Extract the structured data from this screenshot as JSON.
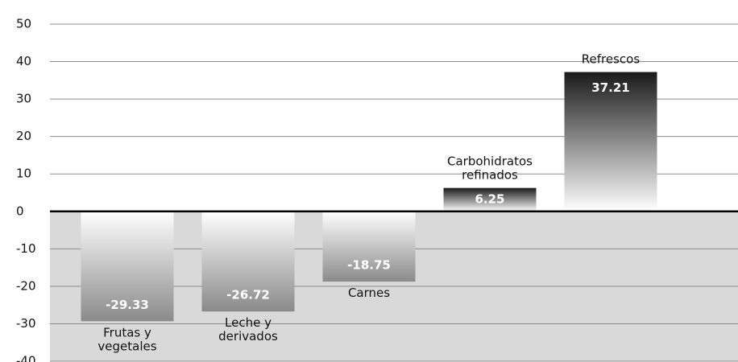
{
  "chart_data": {
    "type": "bar",
    "categories": [
      "Frutas y vegetales",
      "Leche y derivados",
      "Carnes",
      "Carbohidratos refinados",
      "Refrescos"
    ],
    "values": [
      -29.33,
      -26.72,
      -18.75,
      6.25,
      37.21
    ],
    "ylim": [
      -40,
      50
    ],
    "yticks": [
      -40,
      -30,
      -20,
      -10,
      0,
      10,
      20,
      30,
      40,
      50
    ],
    "grid": true
  }
}
